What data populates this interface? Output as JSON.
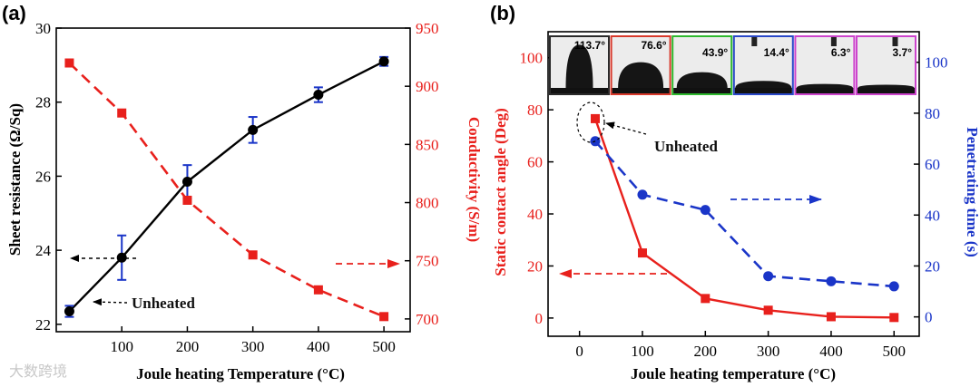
{
  "watermark": "大数跨境",
  "chart_data": [
    {
      "panel_label": "(a)",
      "type": "line",
      "title": "",
      "xlabel": "Joule heating Temperature (°C)",
      "x_tick_labels": [
        "100",
        "200",
        "300",
        "400",
        "500"
      ],
      "xlim": [
        0,
        540
      ],
      "series": [
        {
          "name": "Sheet resistance",
          "axis": "left",
          "color": "#000000",
          "style": "solid",
          "marker": "circle",
          "points": [
            {
              "x": 20,
              "y": 22.35,
              "err": 0.15
            },
            {
              "x": 100,
              "y": 23.8,
              "err": 0.6
            },
            {
              "x": 200,
              "y": 25.85,
              "err": 0.45
            },
            {
              "x": 300,
              "y": 27.25,
              "err": 0.35
            },
            {
              "x": 400,
              "y": 28.2,
              "err": 0.2
            },
            {
              "x": 500,
              "y": 29.1,
              "err": 0.12
            }
          ]
        },
        {
          "name": "Conductivity",
          "axis": "right",
          "color": "#e8201c",
          "style": "dashed",
          "marker": "square",
          "points": [
            {
              "x": 20,
              "y": 920
            },
            {
              "x": 100,
              "y": 877
            },
            {
              "x": 200,
              "y": 802
            },
            {
              "x": 300,
              "y": 755
            },
            {
              "x": 400,
              "y": 725
            },
            {
              "x": 500,
              "y": 702
            }
          ]
        }
      ],
      "y_left": {
        "label": "Sheet resistance (Ω/Sq)",
        "ylim": [
          21.8,
          30
        ],
        "ticks": [
          22,
          24,
          26,
          28,
          30
        ],
        "color": "#000000"
      },
      "y_right": {
        "label": "Conductivity (S/m)",
        "ylim": [
          689,
          950
        ],
        "ticks": [
          700,
          750,
          800,
          850,
          900,
          950
        ],
        "color": "#e8201c"
      },
      "annotations": [
        {
          "text": "Unheated",
          "color": "#111111"
        }
      ]
    },
    {
      "panel_label": "(b)",
      "type": "line",
      "title": "",
      "xlabel": "Joule heating temperature (°C)",
      "x_tick_labels": [
        "0",
        "100",
        "200",
        "300",
        "400",
        "500"
      ],
      "xlim": [
        -50,
        540
      ],
      "series": [
        {
          "name": "Static contact angle",
          "axis": "left",
          "color": "#e8201c",
          "style": "solid",
          "marker": "square",
          "points": [
            {
              "x": 25,
              "y": 76.6
            },
            {
              "x": 100,
              "y": 25
            },
            {
              "x": 200,
              "y": 7.5
            },
            {
              "x": 300,
              "y": 3
            },
            {
              "x": 400,
              "y": 0.5
            },
            {
              "x": 500,
              "y": 0.2
            }
          ]
        },
        {
          "name": "Penetrating time",
          "axis": "right",
          "color": "#1a35c8",
          "style": "dashed",
          "marker": "circle",
          "points": [
            {
              "x": 25,
              "y": 69
            },
            {
              "x": 100,
              "y": 48
            },
            {
              "x": 200,
              "y": 42
            },
            {
              "x": 300,
              "y": 16
            },
            {
              "x": 400,
              "y": 14
            },
            {
              "x": 500,
              "y": 12
            }
          ]
        }
      ],
      "y_left": {
        "label": "Static contact angle (Deg)",
        "ylim": [
          -7,
          110
        ],
        "ticks": [
          0,
          20,
          40,
          60,
          80,
          100
        ],
        "color": "#e8201c"
      },
      "y_right": {
        "label": "Penetrating time (s)",
        "ylim": [
          -7.6,
          112
        ],
        "ticks": [
          0,
          20,
          40,
          60,
          80,
          100
        ],
        "color": "#1a35c8"
      },
      "annotations": [
        {
          "text": "Unheated",
          "color": "#111111"
        }
      ],
      "insets": [
        {
          "angle": "113.7°",
          "frame_color": "#2a2a2a"
        },
        {
          "angle": "76.6°",
          "frame_color": "#d8392b"
        },
        {
          "angle": "43.9°",
          "frame_color": "#2eb82e"
        },
        {
          "angle": "14.4°",
          "frame_color": "#2a48c8"
        },
        {
          "angle": "6.3°",
          "frame_color": "#cc44cc"
        },
        {
          "angle": "3.7°",
          "frame_color": "#cc44cc"
        }
      ]
    }
  ]
}
